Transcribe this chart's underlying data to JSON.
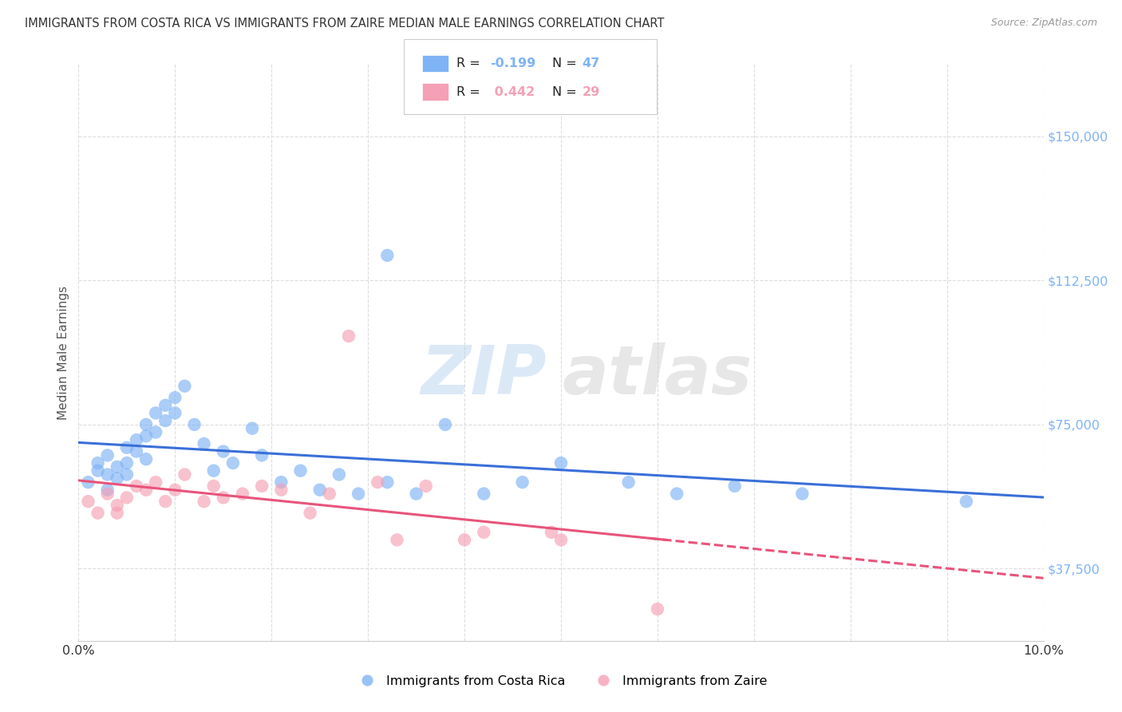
{
  "title": "IMMIGRANTS FROM COSTA RICA VS IMMIGRANTS FROM ZAIRE MEDIAN MALE EARNINGS CORRELATION CHART",
  "source": "Source: ZipAtlas.com",
  "ylabel": "Median Male Earnings",
  "xlim": [
    0.0,
    0.1
  ],
  "ylim": [
    18750,
    168750
  ],
  "yticks": [
    37500,
    75000,
    112500,
    150000
  ],
  "ytick_labels": [
    "$37,500",
    "$75,000",
    "$112,500",
    "$150,000"
  ],
  "xtick_positions": [
    0.0,
    0.01,
    0.02,
    0.03,
    0.04,
    0.05,
    0.06,
    0.07,
    0.08,
    0.09,
    0.1
  ],
  "xtick_labels": [
    "0.0%",
    "",
    "",
    "",
    "",
    "",
    "",
    "",
    "",
    "",
    "10.0%"
  ],
  "background_color": "#ffffff",
  "grid_color": "#dddddd",
  "blue_color": "#7eb3f5",
  "pink_color": "#f5a0b5",
  "blue_line_color": "#3a6fd8",
  "pink_line_color": "#e8547a",
  "r_blue": -0.199,
  "n_blue": 47,
  "r_pink": 0.442,
  "n_pink": 29,
  "legend_label_blue": "Immigrants from Costa Rica",
  "legend_label_pink": "Immigrants from Zaire",
  "watermark_zip": "ZIP",
  "watermark_atlas": "atlas",
  "costa_rica_x": [
    0.001,
    0.002,
    0.002,
    0.003,
    0.003,
    0.003,
    0.004,
    0.004,
    0.005,
    0.005,
    0.005,
    0.006,
    0.006,
    0.007,
    0.007,
    0.007,
    0.008,
    0.008,
    0.009,
    0.009,
    0.01,
    0.01,
    0.011,
    0.012,
    0.013,
    0.014,
    0.015,
    0.016,
    0.018,
    0.019,
    0.021,
    0.023,
    0.025,
    0.027,
    0.029,
    0.032,
    0.035,
    0.038,
    0.042,
    0.046,
    0.05,
    0.057,
    0.062,
    0.068,
    0.075,
    0.092,
    0.032
  ],
  "costa_rica_y": [
    60000,
    65000,
    63000,
    67000,
    62000,
    58000,
    64000,
    61000,
    69000,
    65000,
    62000,
    71000,
    68000,
    75000,
    72000,
    66000,
    78000,
    73000,
    80000,
    76000,
    82000,
    78000,
    85000,
    75000,
    70000,
    63000,
    68000,
    65000,
    74000,
    67000,
    60000,
    63000,
    58000,
    62000,
    57000,
    60000,
    57000,
    75000,
    57000,
    60000,
    65000,
    60000,
    57000,
    59000,
    57000,
    55000,
    119000
  ],
  "zaire_x": [
    0.001,
    0.002,
    0.003,
    0.004,
    0.004,
    0.005,
    0.006,
    0.007,
    0.008,
    0.009,
    0.01,
    0.011,
    0.013,
    0.014,
    0.015,
    0.017,
    0.019,
    0.021,
    0.024,
    0.026,
    0.028,
    0.031,
    0.033,
    0.036,
    0.04,
    0.042,
    0.049,
    0.05,
    0.06
  ],
  "zaire_y": [
    55000,
    52000,
    57000,
    54000,
    52000,
    56000,
    59000,
    58000,
    60000,
    55000,
    58000,
    62000,
    55000,
    59000,
    56000,
    57000,
    59000,
    58000,
    52000,
    57000,
    98000,
    60000,
    45000,
    59000,
    45000,
    47000,
    47000,
    45000,
    27000
  ]
}
